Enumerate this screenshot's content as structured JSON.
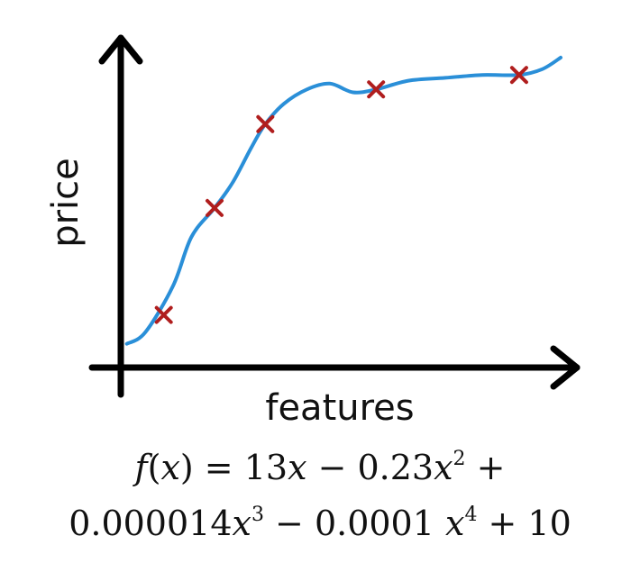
{
  "chart_data": {
    "type": "scatter",
    "xlabel": "features",
    "ylabel": "price",
    "grid": false,
    "points": [
      {
        "x": 0.14,
        "y": 0.16
      },
      {
        "x": 0.25,
        "y": 0.53
      },
      {
        "x": 0.36,
        "y": 0.82
      },
      {
        "x": 0.6,
        "y": 0.94
      },
      {
        "x": 0.91,
        "y": 0.99
      }
    ],
    "curve": [
      {
        "x": 0.06,
        "y": 0.06
      },
      {
        "x": 0.1,
        "y": 0.1
      },
      {
        "x": 0.16,
        "y": 0.26
      },
      {
        "x": 0.2,
        "y": 0.43
      },
      {
        "x": 0.25,
        "y": 0.53
      },
      {
        "x": 0.29,
        "y": 0.62
      },
      {
        "x": 0.33,
        "y": 0.74
      },
      {
        "x": 0.36,
        "y": 0.82
      },
      {
        "x": 0.4,
        "y": 0.89
      },
      {
        "x": 0.45,
        "y": 0.94
      },
      {
        "x": 0.5,
        "y": 0.96
      },
      {
        "x": 0.55,
        "y": 0.93
      },
      {
        "x": 0.6,
        "y": 0.94
      },
      {
        "x": 0.67,
        "y": 0.97
      },
      {
        "x": 0.75,
        "y": 0.98
      },
      {
        "x": 0.83,
        "y": 0.99
      },
      {
        "x": 0.91,
        "y": 0.99
      },
      {
        "x": 0.96,
        "y": 1.01
      },
      {
        "x": 1.0,
        "y": 1.05
      }
    ],
    "curve_color": "#2a8fd8",
    "marker_color": "#b01e1e",
    "axis_color": "#000000"
  },
  "formula": {
    "line1": {
      "fn": "f",
      "lp": "(",
      "var": "x",
      "rp": ")",
      "eq": " = 13",
      "x1": "x",
      "m1": " − 0.23",
      "x2": "x",
      "p2": "2",
      "plus": " +"
    },
    "line2": {
      "c3": "0.000014",
      "x3": "x",
      "p3": "3",
      "m2": " − 0.0001 ",
      "x4": "x",
      "p4": "4",
      "tail": " + 10"
    }
  }
}
